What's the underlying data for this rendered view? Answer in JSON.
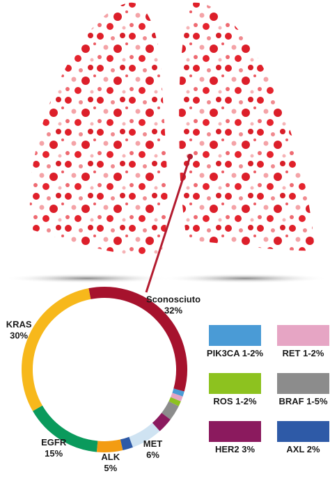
{
  "chart_data": {
    "type": "donut",
    "categories": [
      "Sconosciuto",
      "PIK3CA",
      "RET",
      "ROS",
      "BRAF",
      "HER2",
      "MET",
      "AXL",
      "ALK",
      "EGFR",
      "KRAS"
    ],
    "values": [
      32,
      1,
      1,
      1,
      3,
      3,
      6,
      2,
      5,
      15,
      30
    ],
    "value_labels": [
      "32%",
      "1-2%",
      "1-2%",
      "1-2%",
      "1-5%",
      "3%",
      "6%",
      "2%",
      "5%",
      "15%",
      "30%"
    ],
    "colors": [
      "#a6122d",
      "#4a9bd6",
      "#e6a5c4",
      "#8dc21f",
      "#8c8c8c",
      "#8b1a5e",
      "#cfe3f2",
      "#2e5aa7",
      "#f39c12",
      "#0a9a5c",
      "#f7b81b"
    ]
  }
}
